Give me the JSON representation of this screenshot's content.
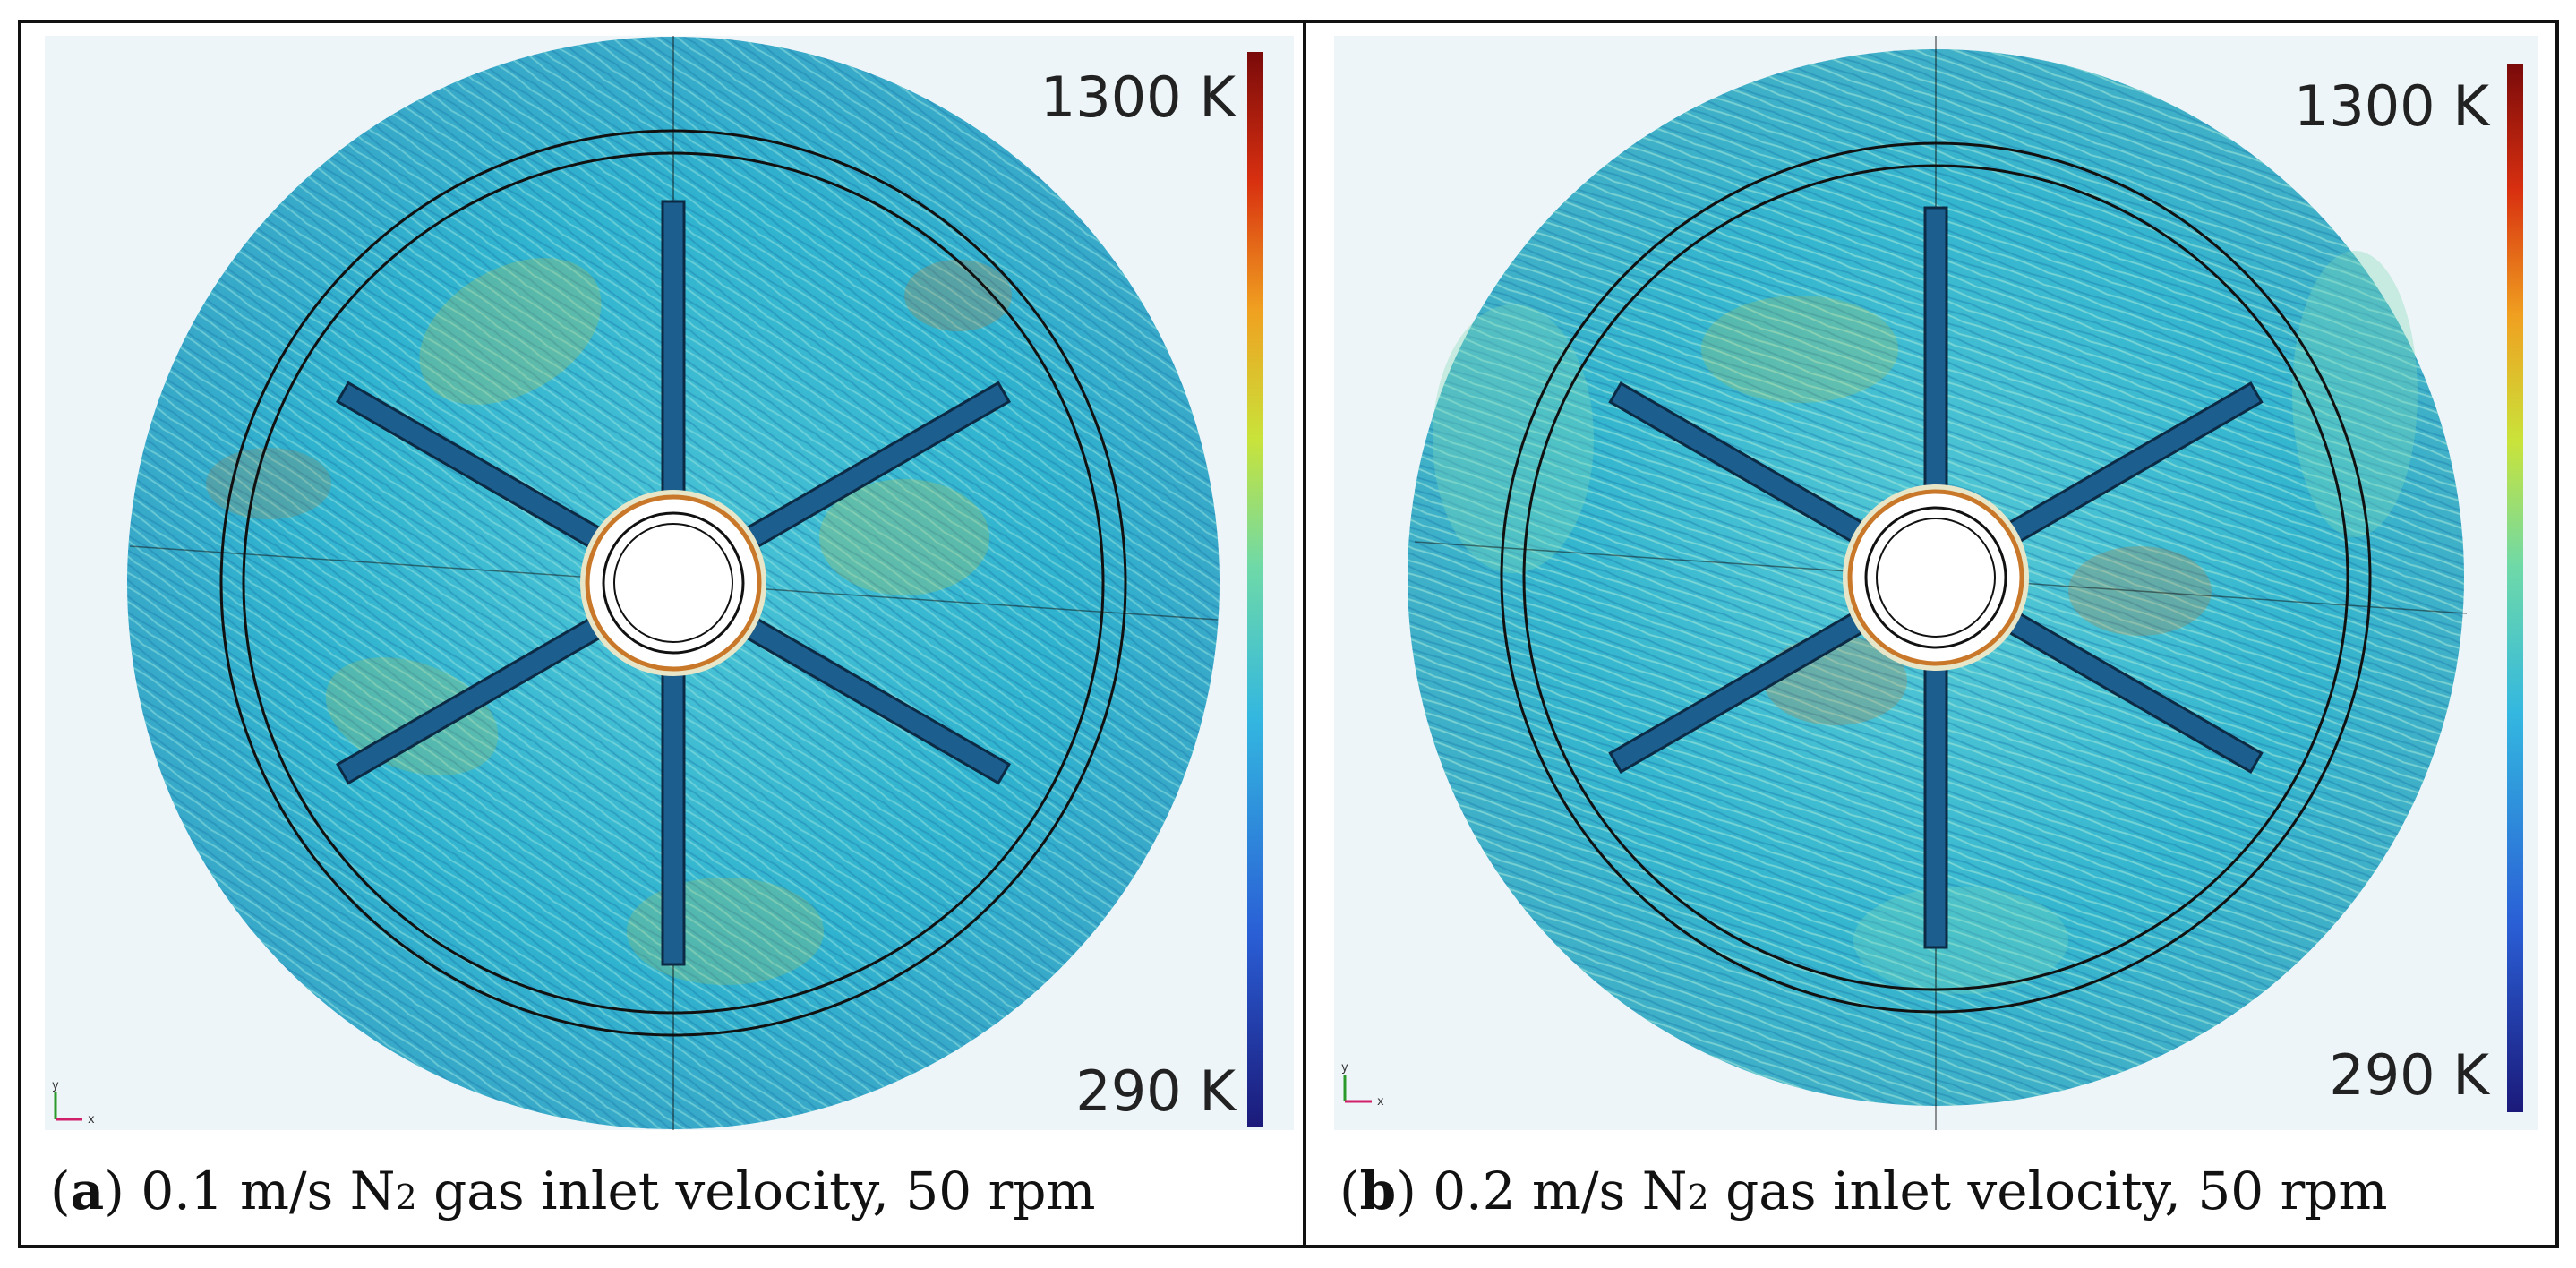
{
  "panels": [
    {
      "id": "a",
      "caption": {
        "letter": "a",
        "text_before": "0.1 m/s N",
        "subscript": "2",
        "text_after": " gas inlet velocity, 50 rpm"
      },
      "colorbar": {
        "max_label": "1300 K",
        "min_label": "290 K"
      },
      "axes_triad": {
        "y": "y",
        "x": "x"
      }
    },
    {
      "id": "b",
      "caption": {
        "letter": "b",
        "text_before": "0.2 m/s N",
        "subscript": "2",
        "text_after": " gas inlet velocity, 50 rpm"
      },
      "colorbar": {
        "max_label": "1300 K",
        "min_label": "290 K"
      },
      "axes_triad": {
        "y": "y",
        "x": "x"
      }
    }
  ],
  "colors": {
    "flow_base": "#2fb3cf",
    "flow_light": "#6fd7d9",
    "flow_dark": "#1f7fae",
    "warm_streak": "#c9c23a",
    "hot_streak": "#c9782a",
    "colorbar_stops": [
      "#1b1a7a",
      "#2a5fd6",
      "#33b7e0",
      "#6ed9a8",
      "#c9e33a",
      "#f0a020",
      "#d83010",
      "#7a0a0a"
    ]
  }
}
